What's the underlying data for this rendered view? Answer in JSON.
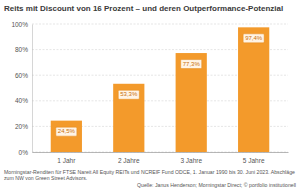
{
  "chart_data": {
    "type": "bar",
    "title": "Reits mit Discount von 16 Prozent – und deren Outperformance-Potenzial",
    "categories": [
      "1 Jahr",
      "2 Jahre",
      "3 Jahre",
      "5 Jahre"
    ],
    "values": [
      24.5,
      53.3,
      77.3,
      97.4
    ],
    "value_labels": [
      "24,5%",
      "53,3%",
      "77,3%",
      "97,4%"
    ],
    "color": "#f39a2b",
    "ylim": [
      0,
      100
    ],
    "yticks": [
      {
        "value": 0,
        "label": "0%"
      },
      {
        "value": 20,
        "label": "20%"
      },
      {
        "value": 40,
        "label": "40%"
      },
      {
        "value": 60,
        "label": "60%"
      },
      {
        "value": 80,
        "label": "80%"
      },
      {
        "value": 100,
        "label": "100%"
      }
    ],
    "grid": true,
    "data_labels": true,
    "note": "Morningstar-Renditen für FTSE Nareit All Equity REITs und NCREIF Fund ODCE, 1. Januar 1990 bis 30. Juni 2023. Abschläge zum NW von Green Street Advisors.",
    "source": "Quelle: Janus Henderson; Morningstar Direct; © portfolio institutionell"
  }
}
